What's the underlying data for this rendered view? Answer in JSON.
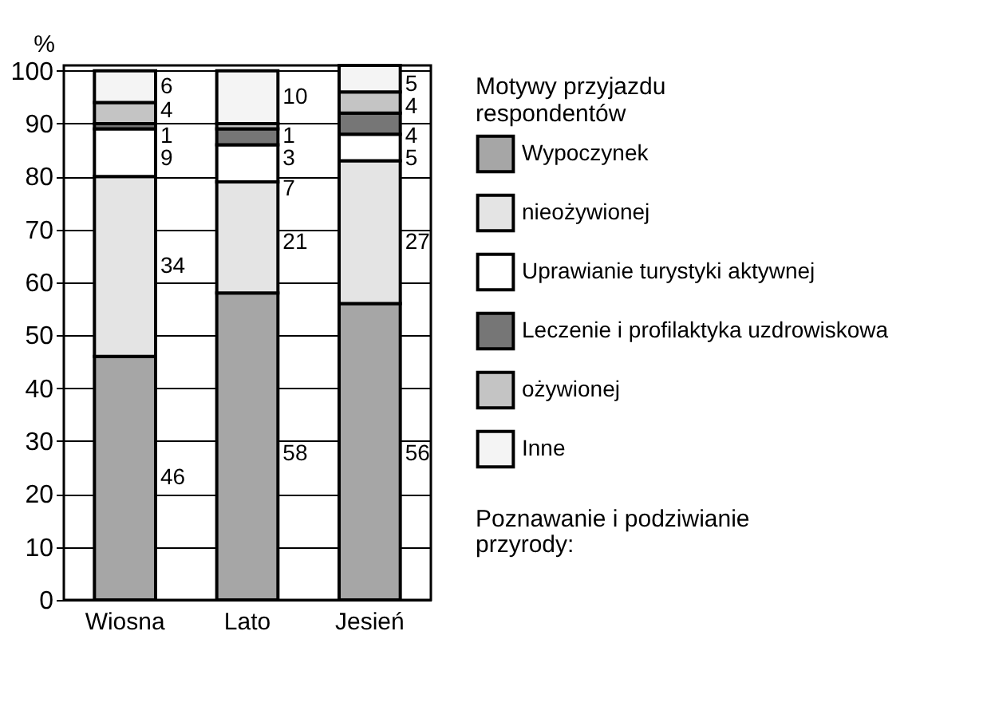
{
  "chart_data": {
    "type": "bar",
    "stacked": true,
    "ylabel": "%",
    "legend_title": "Motywy przyjazdu respondentów",
    "annotations": [
      "Poznawanie i podziwianie przyrody:"
    ],
    "categories": [
      "Wiosna",
      "Lato",
      "Jesień"
    ],
    "series": [
      {
        "name": "Wypoczynek",
        "color": "#a6a6a6",
        "values": [
          46,
          58,
          56
        ]
      },
      {
        "name": "nieożywionej",
        "color": "#e4e4e4",
        "values": [
          34,
          21,
          27
        ]
      },
      {
        "name": "Uprawianie turystyki aktywnej",
        "color": "#ffffff",
        "values": [
          9,
          7,
          5
        ]
      },
      {
        "name": "Leczenie i profilaktyka uzdrowiskowa",
        "color": "#767676",
        "values": [
          1,
          3,
          4
        ]
      },
      {
        "name": "ożywionej",
        "color": "#c4c4c4",
        "values": [
          4,
          1,
          4
        ]
      },
      {
        "name": "Inne",
        "color": "#f4f4f4",
        "values": [
          6,
          10,
          5
        ]
      }
    ],
    "ylim": [
      0,
      101
    ],
    "yticks": [
      0,
      10,
      20,
      30,
      40,
      50,
      60,
      70,
      80,
      90,
      100
    ],
    "grid": "y",
    "legend": "right",
    "data_labels": true
  }
}
